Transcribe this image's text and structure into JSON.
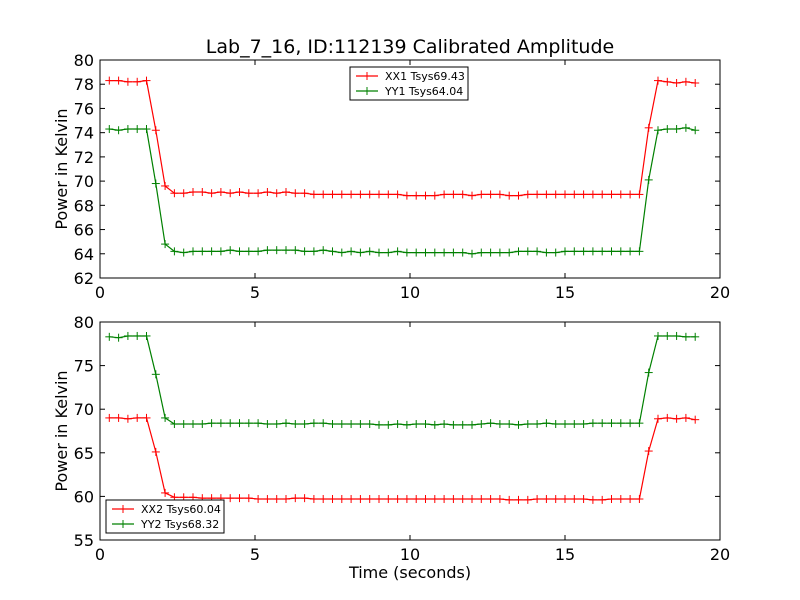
{
  "title": "Lab_7_16, ID:112139 Calibrated Amplitude",
  "chart_data": [
    {
      "type": "line",
      "title": "Lab_7_16, ID:112139 Calibrated Amplitude",
      "xlabel": "",
      "ylabel": "Power in Kelvin",
      "xlim": [
        0,
        20
      ],
      "ylim": [
        62,
        80
      ],
      "xticks": [
        "0",
        "5",
        "10",
        "15",
        "20"
      ],
      "yticks": [
        "62",
        "64",
        "66",
        "68",
        "70",
        "72",
        "74",
        "76",
        "78",
        "80"
      ],
      "xtick_values": [
        0,
        5,
        10,
        15,
        20
      ],
      "ytick_values": [
        62,
        64,
        66,
        68,
        70,
        72,
        74,
        76,
        78,
        80
      ],
      "grid": false,
      "legend": "top-center",
      "x": [
        0.3,
        0.6,
        0.9,
        1.2,
        1.5,
        1.8,
        2.1,
        2.4,
        2.7,
        3.0,
        3.3,
        3.6,
        3.9,
        4.2,
        4.5,
        4.8,
        5.1,
        5.4,
        5.7,
        6.0,
        6.3,
        6.6,
        6.9,
        7.2,
        7.5,
        7.8,
        8.1,
        8.4,
        8.7,
        9.0,
        9.3,
        9.6,
        9.9,
        10.2,
        10.5,
        10.8,
        11.1,
        11.4,
        11.7,
        12.0,
        12.3,
        12.6,
        12.9,
        13.2,
        13.5,
        13.8,
        14.1,
        14.4,
        14.7,
        15.0,
        15.3,
        15.6,
        15.9,
        16.2,
        16.5,
        16.8,
        17.1,
        17.4,
        17.7,
        18.0,
        18.3,
        18.6,
        18.9,
        19.2
      ],
      "series": [
        {
          "name": "XX1 Tsys69.43",
          "color": "#ff0000",
          "values": [
            78.3,
            78.3,
            78.2,
            78.2,
            78.3,
            74.2,
            69.6,
            69.0,
            69.0,
            69.1,
            69.1,
            69.0,
            69.1,
            69.0,
            69.1,
            69.0,
            69.0,
            69.1,
            69.0,
            69.1,
            69.0,
            69.0,
            68.9,
            68.9,
            68.9,
            68.9,
            68.9,
            68.9,
            68.9,
            68.9,
            68.9,
            68.9,
            68.8,
            68.8,
            68.8,
            68.8,
            68.9,
            68.9,
            68.9,
            68.8,
            68.9,
            68.9,
            68.9,
            68.8,
            68.8,
            68.9,
            68.9,
            68.9,
            68.9,
            68.9,
            68.9,
            68.9,
            68.9,
            68.9,
            68.9,
            68.9,
            68.9,
            68.9,
            74.4,
            78.3,
            78.2,
            78.1,
            78.2,
            78.1
          ]
        },
        {
          "name": "YY1 Tsys64.04",
          "color": "#008000",
          "values": [
            74.3,
            74.2,
            74.3,
            74.3,
            74.3,
            69.8,
            64.8,
            64.2,
            64.1,
            64.2,
            64.2,
            64.2,
            64.2,
            64.3,
            64.2,
            64.2,
            64.2,
            64.3,
            64.3,
            64.3,
            64.3,
            64.2,
            64.2,
            64.3,
            64.2,
            64.1,
            64.2,
            64.1,
            64.2,
            64.1,
            64.1,
            64.2,
            64.1,
            64.1,
            64.1,
            64.1,
            64.1,
            64.1,
            64.1,
            64.0,
            64.1,
            64.1,
            64.1,
            64.1,
            64.2,
            64.2,
            64.2,
            64.1,
            64.1,
            64.2,
            64.2,
            64.2,
            64.2,
            64.2,
            64.2,
            64.2,
            64.2,
            64.2,
            70.1,
            74.2,
            74.3,
            74.3,
            74.4,
            74.2
          ]
        }
      ]
    },
    {
      "type": "line",
      "title": "",
      "xlabel": "Time (seconds)",
      "ylabel": "Power in Kelvin",
      "xlim": [
        0,
        20
      ],
      "ylim": [
        55,
        80
      ],
      "xticks": [
        "0",
        "5",
        "10",
        "15",
        "20"
      ],
      "yticks": [
        "55",
        "60",
        "65",
        "70",
        "75",
        "80"
      ],
      "xtick_values": [
        0,
        5,
        10,
        15,
        20
      ],
      "ytick_values": [
        55,
        60,
        65,
        70,
        75,
        80
      ],
      "grid": false,
      "legend": "bottom-left",
      "x": [
        0.3,
        0.6,
        0.9,
        1.2,
        1.5,
        1.8,
        2.1,
        2.4,
        2.7,
        3.0,
        3.3,
        3.6,
        3.9,
        4.2,
        4.5,
        4.8,
        5.1,
        5.4,
        5.7,
        6.0,
        6.3,
        6.6,
        6.9,
        7.2,
        7.5,
        7.8,
        8.1,
        8.4,
        8.7,
        9.0,
        9.3,
        9.6,
        9.9,
        10.2,
        10.5,
        10.8,
        11.1,
        11.4,
        11.7,
        12.0,
        12.3,
        12.6,
        12.9,
        13.2,
        13.5,
        13.8,
        14.1,
        14.4,
        14.7,
        15.0,
        15.3,
        15.6,
        15.9,
        16.2,
        16.5,
        16.8,
        17.1,
        17.4,
        17.7,
        18.0,
        18.3,
        18.6,
        18.9,
        19.2
      ],
      "series": [
        {
          "name": "XX2 Tsys60.04",
          "color": "#ff0000",
          "values": [
            69.0,
            69.0,
            68.9,
            69.0,
            69.0,
            65.1,
            60.4,
            59.9,
            59.9,
            59.9,
            59.8,
            59.8,
            59.8,
            59.8,
            59.8,
            59.8,
            59.7,
            59.7,
            59.7,
            59.7,
            59.8,
            59.8,
            59.7,
            59.7,
            59.7,
            59.7,
            59.7,
            59.7,
            59.7,
            59.7,
            59.7,
            59.7,
            59.7,
            59.7,
            59.7,
            59.7,
            59.7,
            59.7,
            59.7,
            59.7,
            59.7,
            59.7,
            59.7,
            59.6,
            59.6,
            59.6,
            59.7,
            59.7,
            59.7,
            59.7,
            59.7,
            59.7,
            59.6,
            59.6,
            59.7,
            59.7,
            59.7,
            59.7,
            65.2,
            68.9,
            69.0,
            68.9,
            69.0,
            68.8
          ]
        },
        {
          "name": "YY2 Tsys68.32",
          "color": "#008000",
          "values": [
            78.3,
            78.2,
            78.4,
            78.4,
            78.4,
            74.0,
            69.0,
            68.3,
            68.3,
            68.3,
            68.3,
            68.4,
            68.4,
            68.4,
            68.4,
            68.4,
            68.4,
            68.3,
            68.3,
            68.4,
            68.3,
            68.3,
            68.4,
            68.4,
            68.3,
            68.3,
            68.3,
            68.3,
            68.3,
            68.2,
            68.2,
            68.3,
            68.2,
            68.3,
            68.3,
            68.2,
            68.3,
            68.2,
            68.2,
            68.2,
            68.3,
            68.4,
            68.3,
            68.3,
            68.2,
            68.3,
            68.3,
            68.4,
            68.3,
            68.3,
            68.3,
            68.3,
            68.4,
            68.4,
            68.4,
            68.4,
            68.4,
            68.4,
            74.2,
            78.4,
            78.4,
            78.4,
            78.3,
            78.3
          ]
        }
      ]
    }
  ]
}
